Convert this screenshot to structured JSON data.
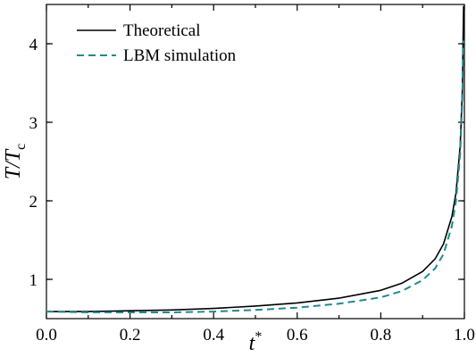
{
  "chart_data": {
    "type": "line",
    "title": "",
    "xlabel": "t*",
    "ylabel": "T/Tc",
    "xlim": [
      0.0,
      1.0
    ],
    "ylim": [
      0.5,
      4.5
    ],
    "x_ticks": [
      "0.0",
      "0.2",
      "0.4",
      "0.6",
      "0.8",
      "1.0"
    ],
    "y_ticks": [
      "1",
      "2",
      "3",
      "4"
    ],
    "x_tick_values": [
      0.0,
      0.2,
      0.4,
      0.6,
      0.8,
      1.0
    ],
    "y_tick_values": [
      1,
      2,
      3,
      4
    ],
    "grid": false,
    "legend_position": "top-left",
    "series": [
      {
        "name": "Theoretical",
        "color": "#000000",
        "style": "solid",
        "x": [
          0.0,
          0.1,
          0.2,
          0.3,
          0.4,
          0.5,
          0.6,
          0.7,
          0.8,
          0.85,
          0.9,
          0.93,
          0.95,
          0.97,
          0.98,
          0.99,
          0.995,
          0.998
        ],
        "y": [
          0.59,
          0.59,
          0.6,
          0.61,
          0.63,
          0.66,
          0.7,
          0.76,
          0.86,
          0.95,
          1.1,
          1.26,
          1.45,
          1.8,
          2.1,
          2.7,
          3.4,
          4.48
        ]
      },
      {
        "name": "LBM simulation",
        "color": "#1f8a8f",
        "style": "dashed",
        "x": [
          0.0,
          0.1,
          0.2,
          0.3,
          0.4,
          0.5,
          0.6,
          0.7,
          0.8,
          0.85,
          0.9,
          0.93,
          0.95,
          0.97,
          0.98,
          0.99,
          0.995,
          0.998
        ],
        "y": [
          0.59,
          0.58,
          0.58,
          0.58,
          0.59,
          0.61,
          0.64,
          0.69,
          0.77,
          0.85,
          0.99,
          1.14,
          1.32,
          1.68,
          2.0,
          2.6,
          3.3,
          4.04
        ]
      }
    ]
  }
}
